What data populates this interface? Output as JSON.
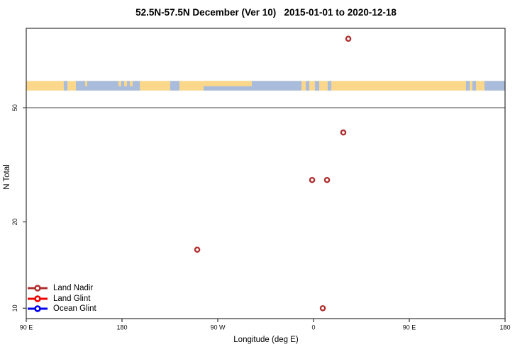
{
  "chart_data": {
    "type": "scatter",
    "title": "52.5N-57.5N December (Ver 10)   2015-01-01 to 2020-12-18",
    "xlabel": "Longitude (deg E)",
    "ylabel": "N Total",
    "y_scale": "log",
    "xlim": [
      -270,
      180
    ],
    "ylim": [
      9.2,
      94.6
    ],
    "grid": false,
    "reference_line_n": 50,
    "x_ticks": [
      {
        "value": -270,
        "label": "90 E"
      },
      {
        "value": -180,
        "label": "180"
      },
      {
        "value": -90,
        "label": "90 W"
      },
      {
        "value": 0,
        "label": "0"
      },
      {
        "value": 90,
        "label": "90 E"
      },
      {
        "value": 180,
        "label": "180"
      }
    ],
    "y_ticks": [
      {
        "value": 10,
        "label": "10"
      },
      {
        "value": 20,
        "label": "20"
      },
      {
        "value": 50,
        "label": "50"
      }
    ],
    "series": [
      {
        "name": "Land Nadir",
        "color": "#B03030",
        "marker": "open-circle",
        "points": [
          {
            "lon": 32.7,
            "n": 87
          },
          {
            "lon": 28.0,
            "n": 41
          },
          {
            "lon": -1.3,
            "n": 28
          },
          {
            "lon": 12.7,
            "n": 28
          },
          {
            "lon": -109.3,
            "n": 16
          },
          {
            "lon": 8.7,
            "n": 10
          }
        ]
      },
      {
        "name": "Land Glint",
        "color": "#EE0000",
        "marker": "open-circle",
        "points": []
      },
      {
        "name": "Ocean Glint",
        "color": "#0000EE",
        "marker": "open-circle",
        "points": []
      }
    ],
    "map_strip": {
      "land_color": "#FAD78A",
      "ocean_color": "#A9BCDC",
      "n_top": 62,
      "n_bottom": 57.4,
      "ocean_segments": [
        [
          -234.7,
          -231.3
        ],
        [
          -223.3,
          -163.3
        ],
        [
          -134.7,
          -126.0
        ],
        [
          -103.3,
          -11.3
        ],
        [
          -7.3,
          -4.0
        ],
        [
          1.3,
          5.3
        ],
        [
          13.3,
          16.7
        ],
        [
          143.3,
          146.7
        ],
        [
          149.3,
          152.7
        ],
        [
          160.7,
          180.0
        ]
      ],
      "islands_upper_half": [
        [
          -214.7,
          -212.7
        ],
        [
          -183.3,
          -180.7
        ],
        [
          -178.0,
          -175.3
        ],
        [
          -172.7,
          -170.0
        ],
        [
          -103.3,
          -58.0
        ]
      ]
    }
  },
  "legend": {
    "position": "bottom-left",
    "items": [
      {
        "label": "Land Nadir",
        "color": "#B03030"
      },
      {
        "label": "Land Glint",
        "color": "#EE0000"
      },
      {
        "label": "Ocean Glint",
        "color": "#0000EE"
      }
    ]
  },
  "frame_color": "#333333"
}
